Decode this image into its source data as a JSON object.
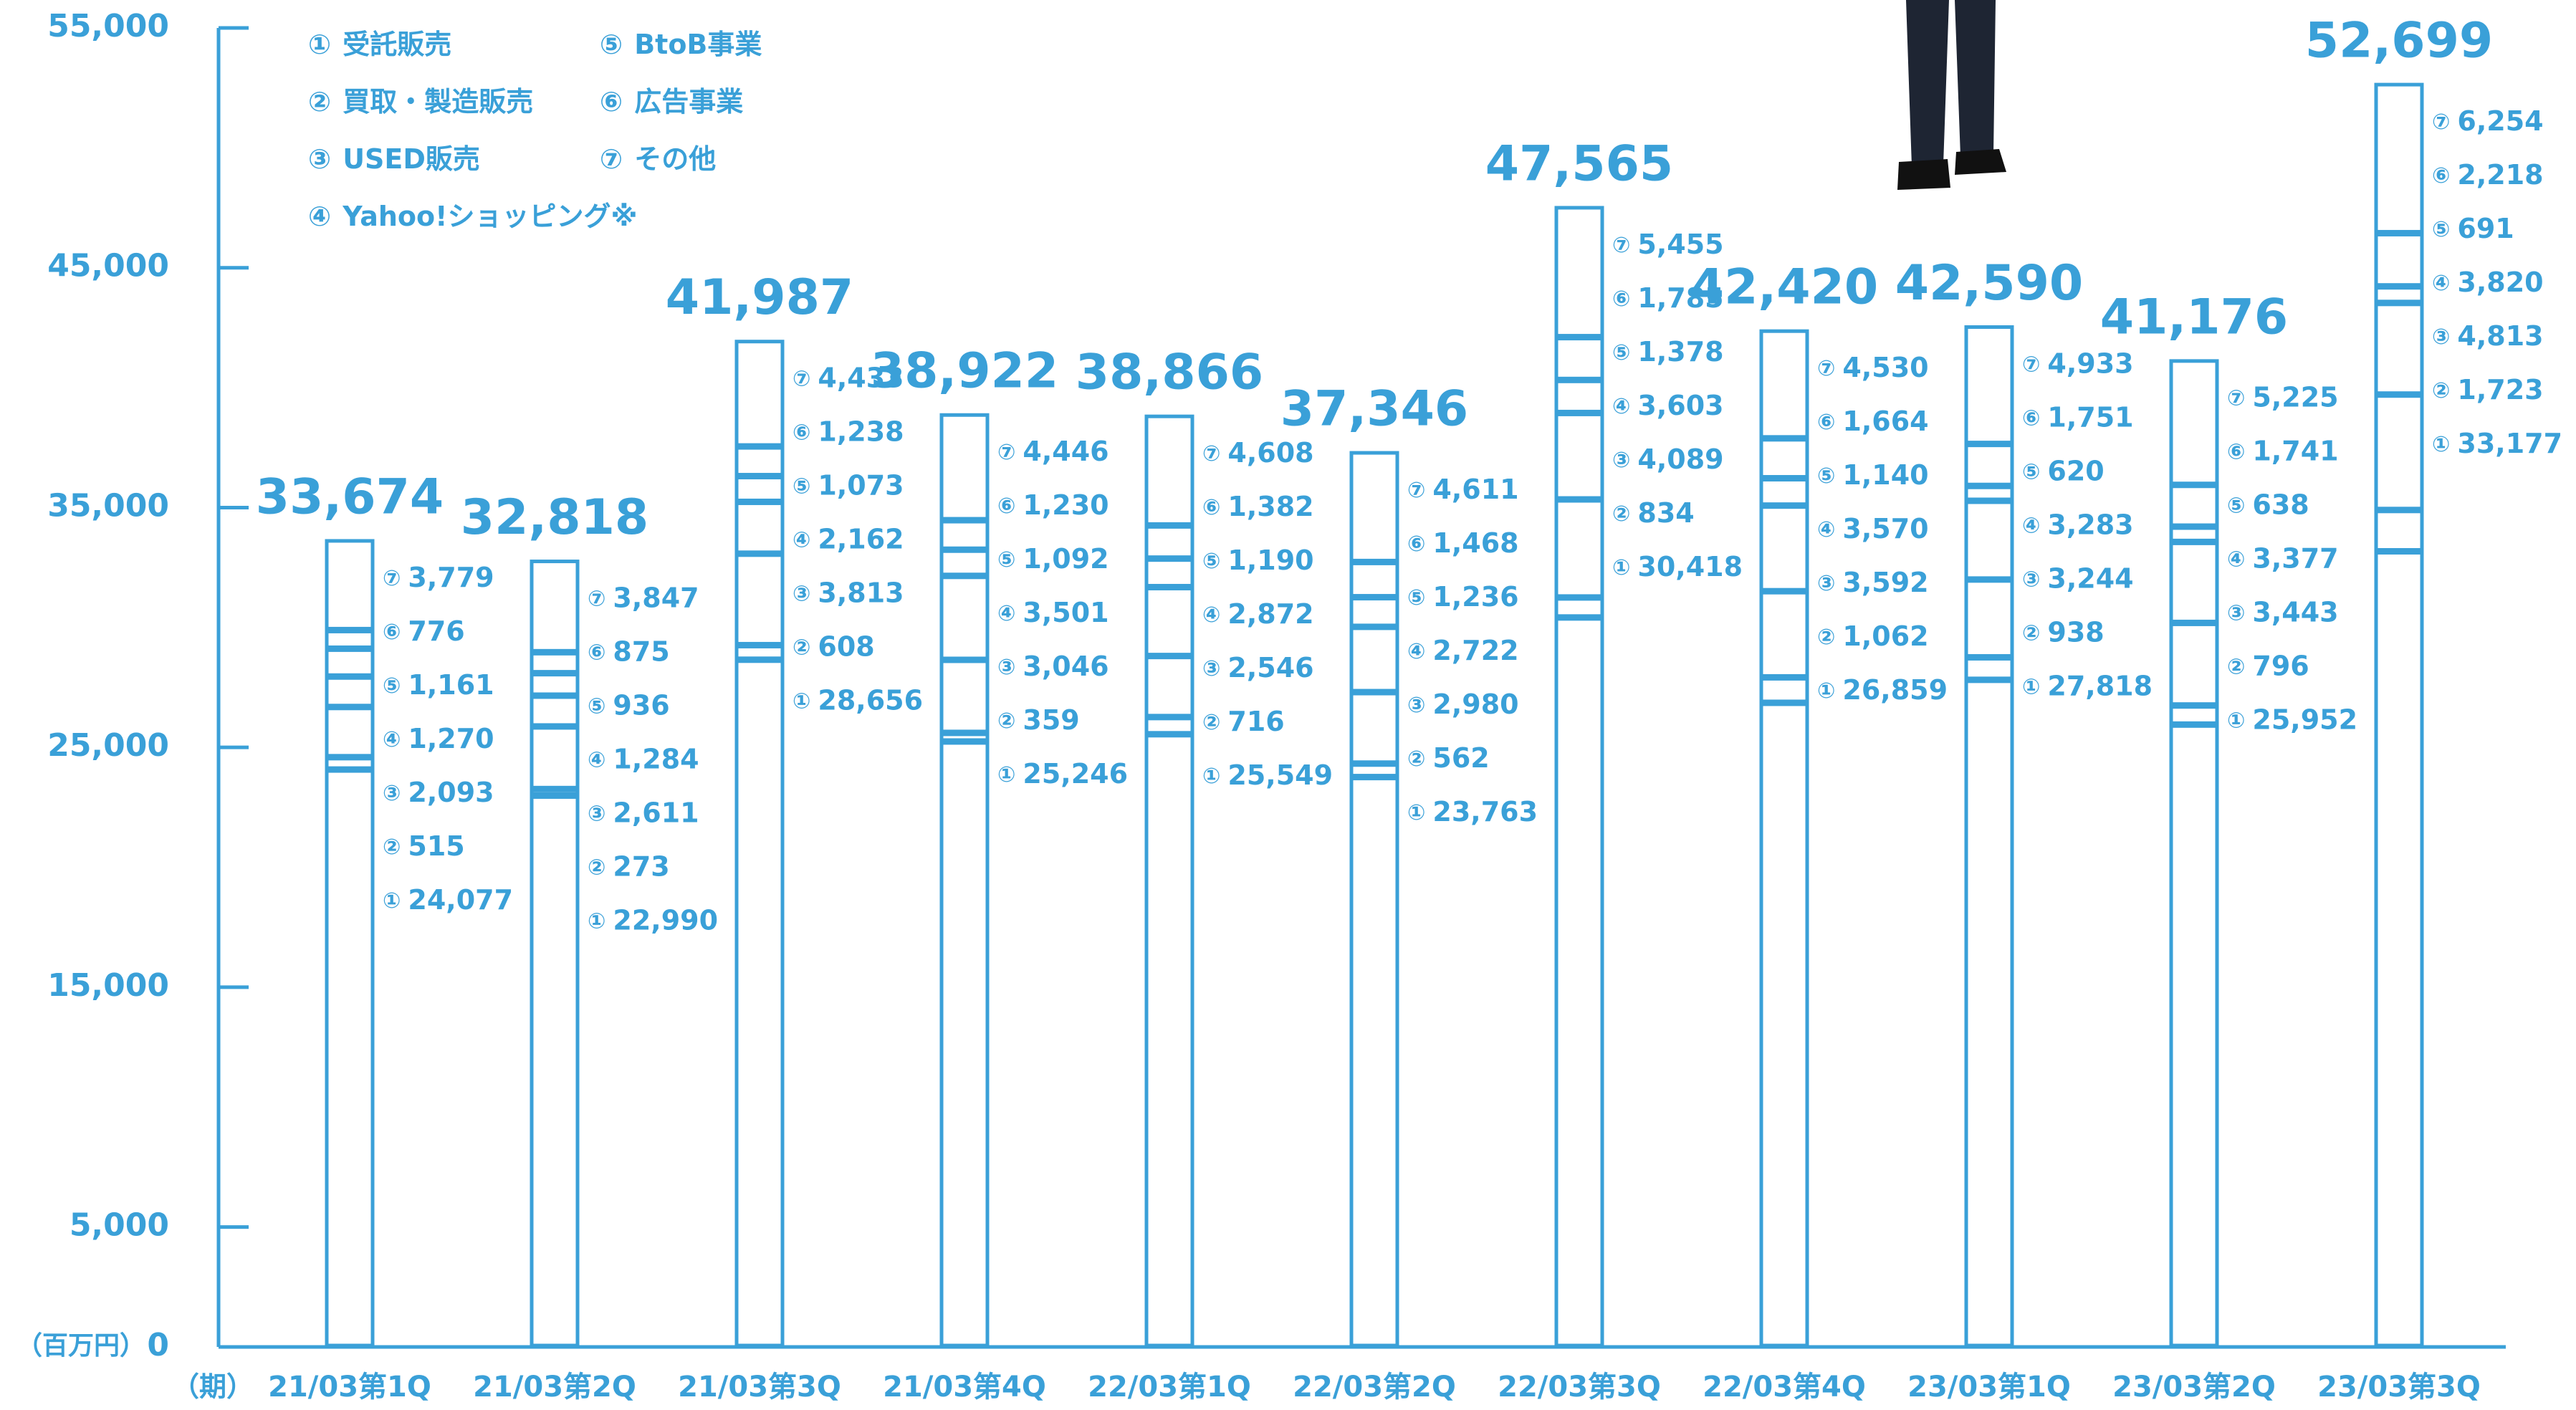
{
  "chart_data": {
    "type": "stacked-bar",
    "x_label": "（期）",
    "y_label": "（百万円）",
    "categories": [
      "21/03第1Q",
      "21/03第2Q",
      "21/03第3Q",
      "21/03第4Q",
      "22/03第1Q",
      "22/03第2Q",
      "22/03第3Q",
      "22/03第4Q",
      "23/03第1Q",
      "23/03第2Q",
      "23/03第3Q"
    ],
    "series": [
      {
        "marker": "①",
        "name": "受託販売",
        "color": "#3aa0d8",
        "values": [
          24077,
          22990,
          28656,
          25246,
          25549,
          23763,
          30418,
          26859,
          27818,
          25952,
          33177
        ],
        "value_labels": [
          "24,077",
          "22,990",
          "28,656",
          "25,246",
          "25,549",
          "23,763",
          "30,418",
          "26,859",
          "27,818",
          "25,952",
          "33,177"
        ]
      },
      {
        "marker": "②",
        "name": "買取・製造販売",
        "color": "#3aa0d8",
        "values": [
          515,
          273,
          608,
          359,
          716,
          562,
          834,
          1062,
          938,
          796,
          1723
        ],
        "value_labels": [
          "515",
          "273",
          "608",
          "359",
          "716",
          "562",
          "834",
          "1,062",
          "938",
          "796",
          "1,723"
        ]
      },
      {
        "marker": "③",
        "name": "USED販売",
        "color": "#3aa0d8",
        "values": [
          2093,
          2611,
          3813,
          3046,
          2546,
          2980,
          4089,
          3592,
          3244,
          3443,
          4813
        ],
        "value_labels": [
          "2,093",
          "2,611",
          "3,813",
          "3,046",
          "2,546",
          "2,980",
          "4,089",
          "3,592",
          "3,244",
          "3,443",
          "4,813"
        ]
      },
      {
        "marker": "④",
        "name": "Yahoo!ショッピング※",
        "color": "#3aa0d8",
        "values": [
          1270,
          1284,
          2162,
          3501,
          2872,
          2722,
          3603,
          3570,
          3283,
          3377,
          3820
        ],
        "value_labels": [
          "1,270",
          "1,284",
          "2,162",
          "3,501",
          "2,872",
          "2,722",
          "3,603",
          "3,570",
          "3,283",
          "3,377",
          "3,820"
        ]
      },
      {
        "marker": "⑤",
        "name": "BtoB事業",
        "color": "#3aa0d8",
        "values": [
          1161,
          936,
          1073,
          1092,
          1190,
          1236,
          1378,
          1140,
          620,
          638,
          691
        ],
        "value_labels": [
          "1,161",
          "936",
          "1,073",
          "1,092",
          "1,190",
          "1,236",
          "1,378",
          "1,140",
          "620",
          "638",
          "691"
        ]
      },
      {
        "marker": "⑥",
        "name": "広告事業",
        "color": "#3aa0d8",
        "values": [
          776,
          875,
          1238,
          1230,
          1382,
          1468,
          1785,
          1664,
          1751,
          1741,
          2218
        ],
        "value_labels": [
          "776",
          "875",
          "1,238",
          "1,230",
          "1,382",
          "1,468",
          "1,785",
          "1,664",
          "1,751",
          "1,741",
          "2,218"
        ]
      },
      {
        "marker": "⑦",
        "name": "その他",
        "color": "#3aa0d8",
        "values": [
          3779,
          3847,
          4433,
          4446,
          4608,
          4611,
          5455,
          4530,
          4933,
          5225,
          6254
        ],
        "value_labels": [
          "3,779",
          "3,847",
          "4,433",
          "4,446",
          "4,608",
          "4,611",
          "5,455",
          "4,530",
          "4,933",
          "5,225",
          "6,254"
        ]
      }
    ],
    "totals": [
      33674,
      32818,
      41987,
      38922,
      38866,
      37346,
      47565,
      42420,
      42590,
      41176,
      52699
    ],
    "total_labels": [
      "33,674",
      "32,818",
      "41,987",
      "38,922",
      "38,866",
      "37,346",
      "47,565",
      "42,420",
      "42,590",
      "41,176",
      "52,699"
    ],
    "ylim": [
      0,
      55000
    ],
    "yticks": [
      0,
      {
        "value": 5000,
        "label": "5,000"
      },
      {
        "value": 15000,
        "label": "15,000"
      },
      {
        "value": 25000,
        "label": "25,000"
      },
      {
        "value": 35000,
        "label": "35,000"
      },
      {
        "value": 45000,
        "label": "45,000"
      },
      {
        "value": 55000,
        "label": "55,000"
      }
    ]
  }
}
